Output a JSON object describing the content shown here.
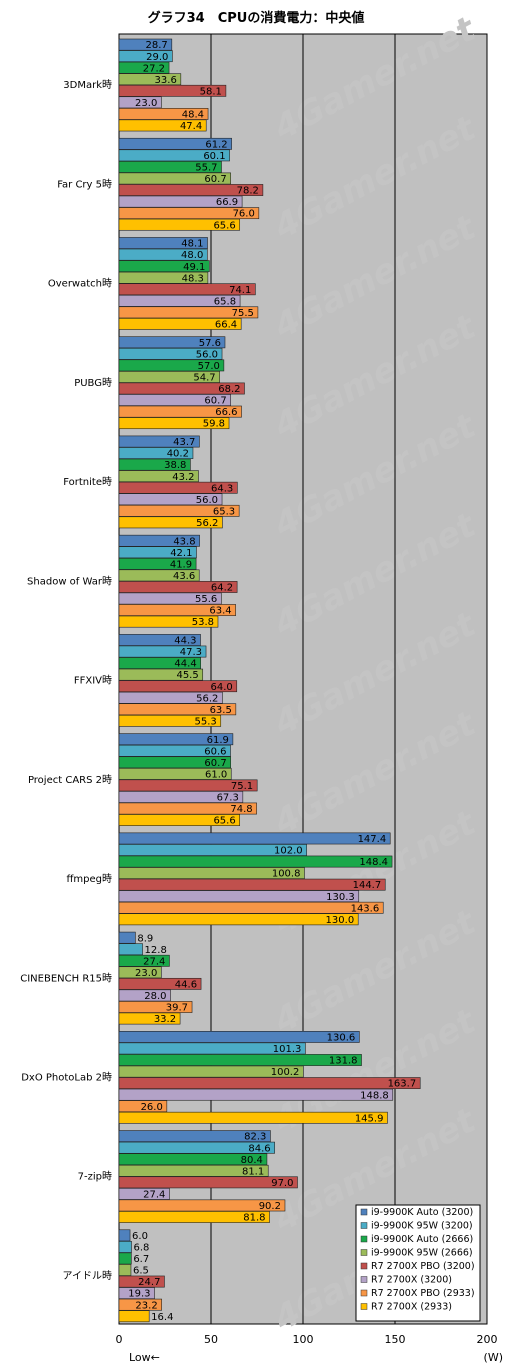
{
  "chart_data": {
    "type": "bar",
    "orientation": "horizontal",
    "title": "グラフ34　CPUの消費電力：中央値",
    "xlabel_left": "Low←",
    "unit": "(W)",
    "xlim": [
      0,
      200
    ],
    "xticks": [
      0,
      50,
      100,
      150,
      200
    ],
    "grid": true,
    "legend_position": "bottom-right",
    "watermark": "4Gamer.net",
    "categories": [
      "3DMark時",
      "Far Cry 5時",
      "Overwatch時",
      "PUBG時",
      "Fortnite時",
      "Shadow of War時",
      "FFXIV時",
      "Project CARS 2時",
      "ffmpeg時",
      "CINEBENCH R15時",
      "DxO PhotoLab 2時",
      "7-zip時",
      "アイドル時"
    ],
    "series": [
      {
        "name": "i9-9900K Auto (3200)",
        "color": "#4f81bd",
        "values": [
          28.7,
          61.2,
          48.1,
          57.6,
          43.7,
          43.8,
          44.3,
          61.9,
          147.4,
          8.9,
          130.6,
          82.3,
          6.0
        ]
      },
      {
        "name": "i9-9900K 95W (3200)",
        "color": "#4bacc6",
        "values": [
          29.0,
          60.1,
          48.0,
          56.0,
          40.2,
          42.1,
          47.3,
          60.6,
          102.0,
          12.8,
          101.3,
          84.6,
          6.8
        ]
      },
      {
        "name": "i9-9900K Auto (2666)",
        "color": "#1aa84a",
        "values": [
          27.2,
          55.7,
          49.1,
          57.0,
          38.8,
          41.9,
          44.4,
          60.7,
          148.4,
          27.4,
          131.8,
          80.4,
          6.7
        ]
      },
      {
        "name": "i9-9900K 95W (2666)",
        "color": "#9bbb59",
        "values": [
          33.6,
          60.7,
          48.3,
          54.7,
          43.2,
          43.6,
          45.5,
          61.0,
          100.8,
          23.0,
          100.2,
          81.1,
          6.5
        ]
      },
      {
        "name": "R7 2700X PBO (3200)",
        "color": "#c0504d",
        "values": [
          58.1,
          78.2,
          74.1,
          68.2,
          64.3,
          64.2,
          64.0,
          75.1,
          144.7,
          44.6,
          163.7,
          97.0,
          24.7
        ]
      },
      {
        "name": "R7 2700X (3200)",
        "color": "#b3a2c7",
        "values": [
          23.0,
          66.9,
          65.8,
          60.7,
          56.0,
          55.6,
          56.2,
          67.3,
          130.3,
          28.0,
          148.8,
          27.4,
          19.3
        ]
      },
      {
        "name": "R7 2700X PBO (2933)",
        "color": "#f79646",
        "values": [
          48.4,
          76.0,
          75.5,
          66.6,
          65.3,
          63.4,
          63.5,
          74.8,
          143.6,
          39.7,
          26.0,
          90.2,
          23.2
        ]
      },
      {
        "name": "R7 2700X (2933)",
        "color": "#ffc000",
        "values": [
          47.4,
          65.6,
          66.4,
          59.8,
          56.2,
          53.8,
          55.3,
          65.6,
          130.0,
          33.2,
          145.9,
          81.8,
          16.4
        ]
      }
    ]
  }
}
